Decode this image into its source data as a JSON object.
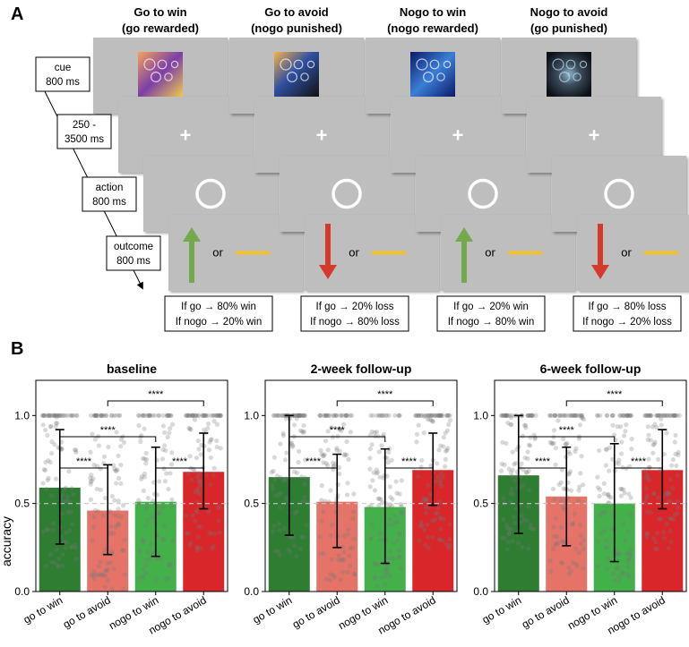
{
  "panel_a": {
    "label": "A",
    "conditions": [
      {
        "title": "Go to win",
        "subtitle": "(go rewarded)",
        "outcome_lines": [
          "If go → 80% win",
          "If nogo → 20% win"
        ],
        "arrow": "up",
        "arrow_color": "#74a94e"
      },
      {
        "title": "Go to avoid",
        "subtitle": "(nogo punished)",
        "outcome_lines": [
          "If go → 20% loss",
          "If nogo → 80% loss"
        ],
        "arrow": "down",
        "arrow_color": "#d23a2a"
      },
      {
        "title": "Nogo to win",
        "subtitle": "(nogo rewarded)",
        "outcome_lines": [
          "If go → 20% win",
          "If nogo → 80% win"
        ],
        "arrow": "up",
        "arrow_color": "#74a94e"
      },
      {
        "title": "Nogo to avoid",
        "subtitle": "(go punished)",
        "outcome_lines": [
          "If go → 80% loss",
          "If nogo → 20% loss"
        ],
        "arrow": "down",
        "arrow_color": "#d23a2a"
      }
    ],
    "fixation_symbol": "+",
    "or_text": "or",
    "timeline": [
      {
        "name": "cue",
        "duration": "800 ms"
      },
      {
        "name": "250 -",
        "duration": "3500 ms"
      },
      {
        "name": "action",
        "duration": "800 ms"
      },
      {
        "name": "outcome",
        "duration": "800 ms"
      }
    ]
  },
  "panel_b": {
    "label": "B",
    "significance_label": "****",
    "ylabel": "accuracy"
  },
  "colors": {
    "screen_gray": "#bebebe",
    "go_to_win": "#2e7d32",
    "go_to_avoid": "#e57368",
    "nogo_to_win": "#43b04a",
    "nogo_to_avoid": "#d9262a",
    "neutral_bar": "#f2c12e"
  },
  "chart_data": [
    {
      "type": "bar",
      "title": "baseline",
      "categories": [
        "go to win",
        "go to avoid",
        "nogo to win",
        "nogo to avoid"
      ],
      "values": [
        0.59,
        0.46,
        0.51,
        0.68
      ],
      "error_low": [
        0.27,
        0.21,
        0.2,
        0.47
      ],
      "error_high": [
        0.92,
        0.72,
        0.82,
        0.9
      ],
      "ylabel": "accuracy",
      "ylim": [
        0,
        1.2
      ],
      "yticks": [
        "0.0",
        "0.5",
        "1.0"
      ],
      "reference_line": 0.5,
      "significance": [
        {
          "from": 0,
          "to": 1,
          "label": "****"
        },
        {
          "from": 2,
          "to": 3,
          "label": "****"
        },
        {
          "from": 0,
          "to": 2,
          "label": "****"
        },
        {
          "from": 1,
          "to": 3,
          "label": "****"
        }
      ]
    },
    {
      "type": "bar",
      "title": "2-week follow-up",
      "categories": [
        "go to win",
        "go to avoid",
        "nogo to win",
        "nogo to avoid"
      ],
      "values": [
        0.65,
        0.51,
        0.48,
        0.69
      ],
      "error_low": [
        0.32,
        0.25,
        0.16,
        0.49
      ],
      "error_high": [
        1.0,
        0.78,
        0.81,
        0.9
      ],
      "ylim": [
        0,
        1.2
      ],
      "yticks": [
        "0.0",
        "0.5",
        "1.0"
      ],
      "reference_line": 0.5,
      "significance": [
        {
          "from": 0,
          "to": 1,
          "label": "****"
        },
        {
          "from": 2,
          "to": 3,
          "label": "****"
        },
        {
          "from": 0,
          "to": 2,
          "label": "****"
        },
        {
          "from": 1,
          "to": 3,
          "label": "****"
        }
      ]
    },
    {
      "type": "bar",
      "title": "6-week follow-up",
      "categories": [
        "go to win",
        "go to avoid",
        "nogo to win",
        "nogo to avoid"
      ],
      "values": [
        0.66,
        0.54,
        0.5,
        0.69
      ],
      "error_low": [
        0.33,
        0.26,
        0.17,
        0.47
      ],
      "error_high": [
        1.0,
        0.82,
        0.84,
        0.92
      ],
      "ylim": [
        0,
        1.2
      ],
      "yticks": [
        "0.0",
        "0.5",
        "1.0"
      ],
      "reference_line": 0.5,
      "significance": [
        {
          "from": 0,
          "to": 1,
          "label": "****"
        },
        {
          "from": 2,
          "to": 3,
          "label": "****"
        },
        {
          "from": 0,
          "to": 2,
          "label": "****"
        },
        {
          "from": 1,
          "to": 3,
          "label": "****"
        }
      ]
    }
  ]
}
